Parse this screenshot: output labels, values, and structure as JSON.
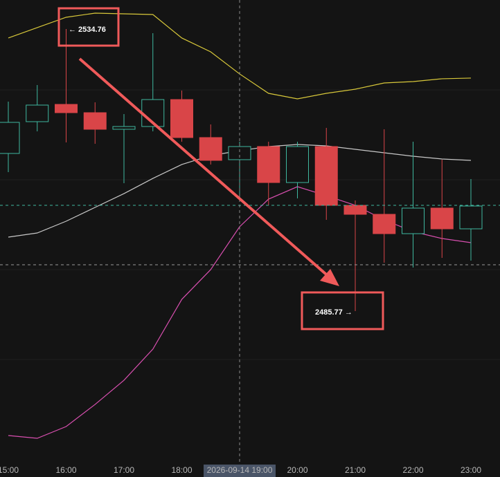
{
  "chart_data": {
    "type": "candlestick",
    "categories": [
      "15:00",
      null,
      "16:00",
      null,
      "17:00",
      null,
      "18:00",
      null,
      "2026-09-14 19:00",
      null,
      "20:00",
      null,
      "21:00",
      null,
      "22:00",
      null,
      "23:00"
    ],
    "open": [
      2513.15,
      2518.67,
      2521.67,
      2520.23,
      2517.35,
      2517.83,
      2522.51,
      2515.91,
      2512.07,
      2514.35,
      2508.1,
      2514.35,
      2504.14,
      2502.58,
      2499.22,
      2503.66,
      2500.06
    ],
    "high": [
      2522.15,
      2525.03,
      2534.76,
      2522.03,
      2519.99,
      2534.04,
      2524.07,
      2518.19,
      2515.19,
      2515.19,
      2515.19,
      2517.59,
      2504.98,
      2517.35,
      2515.19,
      2512.07,
      2508.7
    ],
    "low": [
      2509.91,
      2516.99,
      2515.07,
      2514.83,
      2507.98,
      2516.99,
      2515.19,
      2511.23,
      2505.22,
      2504.14,
      2505.34,
      2501.62,
      2485.77,
      2494.18,
      2493.34,
      2495.02,
      2494.54
    ],
    "close": [
      2518.55,
      2521.55,
      2520.23,
      2517.35,
      2517.83,
      2522.51,
      2515.91,
      2511.95,
      2514.35,
      2508.1,
      2514.35,
      2504.14,
      2502.58,
      2499.22,
      2503.66,
      2500.06,
      2504.02
    ],
    "up_color": "#3fb8a0",
    "down_color": "#d94548",
    "lines": [
      {
        "color": "#d8c83a",
        "values": [
          2533.2,
          2535.0,
          2536.8,
          2537.52,
          2537.4,
          2537.28,
          2533.2,
          2530.8,
          2526.96,
          2523.59,
          2522.63,
          2523.59,
          2524.31,
          2525.39,
          2525.63,
          2526.12,
          2526.24
        ]
      },
      {
        "color": "#c8c8c8",
        "values": [
          2498.62,
          2499.34,
          2501.38,
          2503.78,
          2506.18,
          2508.82,
          2511.23,
          2512.79,
          2513.63,
          2514.35,
          2514.71,
          2514.47,
          2513.87,
          2513.27,
          2512.67,
          2512.19,
          2511.95
        ]
      },
      {
        "color": "#d94fb0",
        "values": [
          2464.16,
          2463.68,
          2465.72,
          2469.56,
          2473.76,
          2479.17,
          2487.81,
          2492.98,
          2500.42,
          2505.22,
          2507.38,
          2505.82,
          2504.14,
          2501.62,
          2499.58,
          2498.38,
          2497.66
        ]
      }
    ],
    "ylim": [
      2459.6,
      2539.8
    ],
    "annotations": [
      {
        "text": "← 2534.76"
      },
      {
        "text": "2485.77 →"
      }
    ]
  }
}
